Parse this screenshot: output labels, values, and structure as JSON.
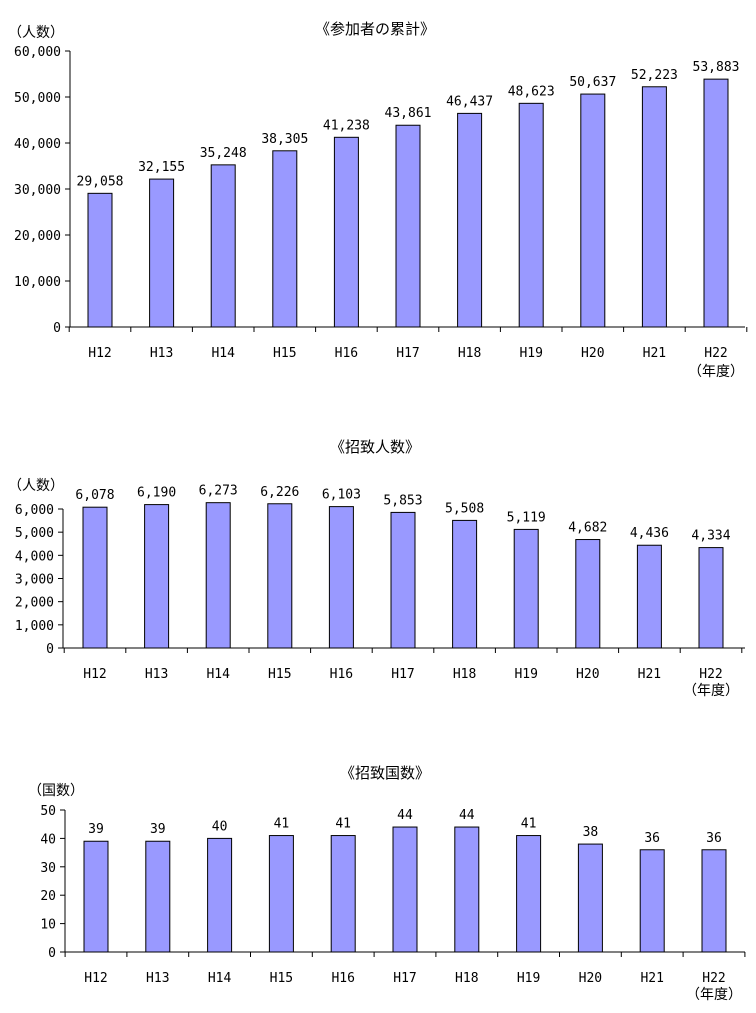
{
  "chart_data": [
    {
      "type": "bar",
      "title": "《参加者の累計》",
      "ylabel": "（人数）",
      "xlabel": "（年度）",
      "categories": [
        "H12",
        "H13",
        "H14",
        "H15",
        "H16",
        "H17",
        "H18",
        "H19",
        "H20",
        "H21",
        "H22"
      ],
      "values": [
        29058,
        32155,
        35248,
        38305,
        41238,
        43861,
        46437,
        48623,
        50637,
        52223,
        53883
      ],
      "value_labels": [
        "29,058",
        "32,155",
        "35,248",
        "38,305",
        "41,238",
        "43,861",
        "46,437",
        "48,623",
        "50,637",
        "52,223",
        "53,883"
      ],
      "ylim": [
        0,
        60000
      ],
      "yticks": [
        0,
        10000,
        20000,
        30000,
        40000,
        50000,
        60000
      ],
      "ytick_labels": [
        "0",
        "10,000",
        "20,000",
        "30,000",
        "40,000",
        "50,000",
        "60,000"
      ],
      "bar_color": "#9999ff",
      "grid": false,
      "legend": "none"
    },
    {
      "type": "bar",
      "title": "《招致人数》",
      "ylabel": "（人数）",
      "xlabel": "（年度）",
      "categories": [
        "H12",
        "H13",
        "H14",
        "H15",
        "H16",
        "H17",
        "H18",
        "H19",
        "H20",
        "H21",
        "H22"
      ],
      "values": [
        6078,
        6190,
        6273,
        6226,
        6103,
        5853,
        5508,
        5119,
        4682,
        4436,
        4334
      ],
      "value_labels": [
        "6,078",
        "6,190",
        "6,273",
        "6,226",
        "6,103",
        "5,853",
        "5,508",
        "5,119",
        "4,682",
        "4,436",
        "4,334"
      ],
      "ylim": [
        0,
        6000
      ],
      "yticks": [
        0,
        1000,
        2000,
        3000,
        4000,
        5000,
        6000
      ],
      "ytick_labels": [
        "0",
        "1,000",
        "2,000",
        "3,000",
        "4,000",
        "5,000",
        "6,000"
      ],
      "bar_color": "#9999ff",
      "grid": false,
      "legend": "none"
    },
    {
      "type": "bar",
      "title": "《招致国数》",
      "ylabel": "（国数）",
      "xlabel": "（年度）",
      "categories": [
        "H12",
        "H13",
        "H14",
        "H15",
        "H16",
        "H17",
        "H18",
        "H19",
        "H20",
        "H21",
        "H22"
      ],
      "values": [
        39,
        39,
        40,
        41,
        41,
        44,
        44,
        41,
        38,
        36,
        36
      ],
      "value_labels": [
        "39",
        "39",
        "40",
        "41",
        "41",
        "44",
        "44",
        "41",
        "38",
        "36",
        "36"
      ],
      "ylim": [
        0,
        50
      ],
      "yticks": [
        0,
        10,
        20,
        30,
        40,
        50
      ],
      "ytick_labels": [
        "0",
        "10",
        "20",
        "30",
        "40",
        "50"
      ],
      "bar_color": "#9999ff",
      "grid": false,
      "legend": "none"
    }
  ]
}
